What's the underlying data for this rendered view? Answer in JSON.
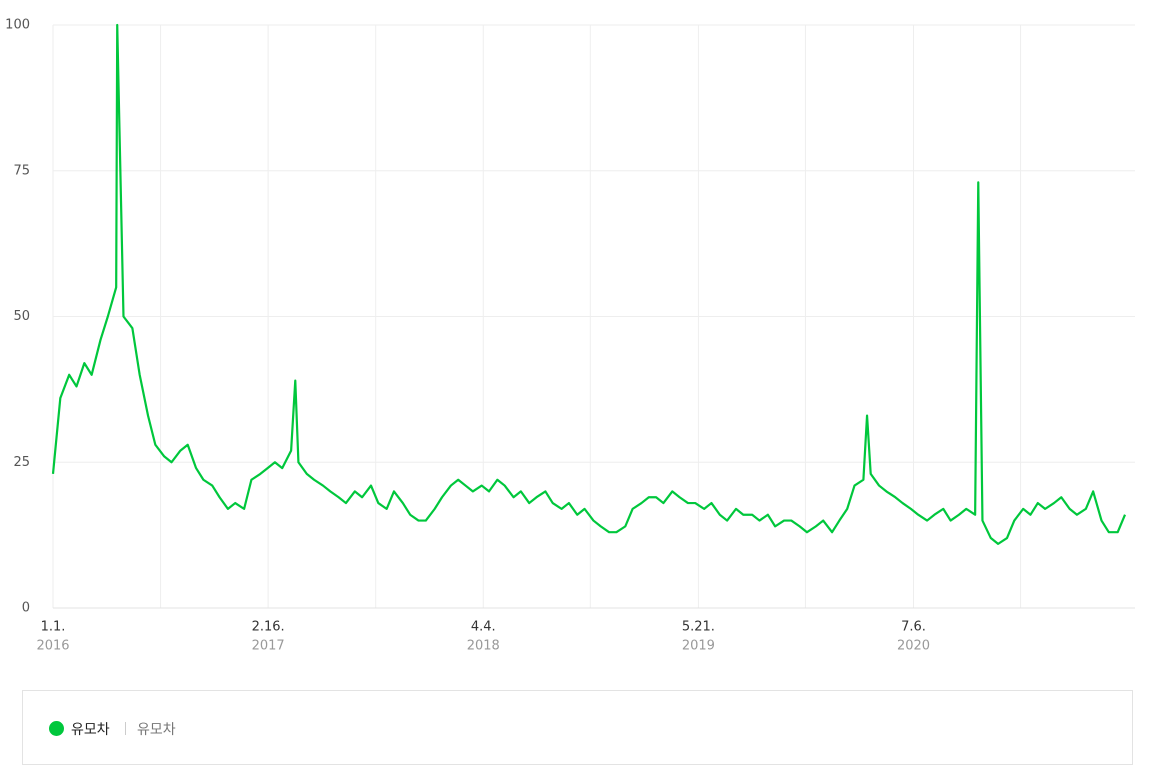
{
  "chart_data": {
    "type": "line",
    "x": [
      "2016-01-01",
      "2016-01-15",
      "2016-02-01",
      "2016-02-15",
      "2016-03-01",
      "2016-03-15",
      "2016-04-01",
      "2016-04-15",
      "2016-05-01",
      "2016-05-03",
      "2016-05-15",
      "2016-06-01",
      "2016-06-15",
      "2016-07-01",
      "2016-07-15",
      "2016-08-01",
      "2016-08-15",
      "2016-09-01",
      "2016-09-15",
      "2016-10-01",
      "2016-10-15",
      "2016-11-01",
      "2016-11-15",
      "2016-12-01",
      "2016-12-15",
      "2017-01-01",
      "2017-01-15",
      "2017-02-01",
      "2017-02-15",
      "2017-03-01",
      "2017-03-15",
      "2017-04-01",
      "2017-04-09",
      "2017-04-15",
      "2017-05-01",
      "2017-05-15",
      "2017-06-01",
      "2017-06-15",
      "2017-07-01",
      "2017-07-15",
      "2017-08-01",
      "2017-08-15",
      "2017-09-01",
      "2017-09-15",
      "2017-10-01",
      "2017-10-15",
      "2017-11-01",
      "2017-11-15",
      "2017-12-01",
      "2017-12-15",
      "2018-01-01",
      "2018-01-15",
      "2018-02-01",
      "2018-02-15",
      "2018-03-01",
      "2018-03-15",
      "2018-04-01",
      "2018-04-15",
      "2018-05-01",
      "2018-05-15",
      "2018-06-01",
      "2018-06-15",
      "2018-07-01",
      "2018-07-15",
      "2018-08-01",
      "2018-08-15",
      "2018-09-01",
      "2018-09-15",
      "2018-10-01",
      "2018-10-15",
      "2018-11-01",
      "2018-11-15",
      "2018-12-01",
      "2018-12-15",
      "2019-01-01",
      "2019-01-15",
      "2019-02-01",
      "2019-02-15",
      "2019-03-01",
      "2019-03-15",
      "2019-04-01",
      "2019-04-15",
      "2019-05-01",
      "2019-05-15",
      "2019-06-01",
      "2019-06-15",
      "2019-07-01",
      "2019-07-15",
      "2019-08-01",
      "2019-08-15",
      "2019-09-01",
      "2019-09-15",
      "2019-10-01",
      "2019-10-15",
      "2019-11-01",
      "2019-11-15",
      "2019-12-01",
      "2019-12-15",
      "2020-01-01",
      "2020-01-15",
      "2020-02-01",
      "2020-02-15",
      "2020-03-01",
      "2020-03-15",
      "2020-04-01",
      "2020-04-08",
      "2020-04-15",
      "2020-05-01",
      "2020-05-15",
      "2020-06-01",
      "2020-06-15",
      "2020-07-01",
      "2020-07-15",
      "2020-08-01",
      "2020-08-15",
      "2020-09-01",
      "2020-09-15",
      "2020-10-01",
      "2020-10-15",
      "2020-11-01",
      "2020-11-07",
      "2020-11-15",
      "2020-12-01",
      "2020-12-15",
      "2021-01-01",
      "2021-01-15",
      "2021-02-01",
      "2021-02-15",
      "2021-03-01",
      "2021-03-15",
      "2021-04-01",
      "2021-04-15",
      "2021-05-01",
      "2021-05-15",
      "2021-06-01",
      "2021-06-15",
      "2021-07-01",
      "2021-07-15",
      "2021-08-01",
      "2021-08-15"
    ],
    "series": [
      {
        "name": "유모차",
        "subtitle": "유모차",
        "color": "#00c73c",
        "values": [
          23,
          36,
          40,
          38,
          42,
          40,
          46,
          50,
          55,
          100,
          50,
          48,
          40,
          33,
          28,
          26,
          25,
          27,
          28,
          24,
          22,
          21,
          19,
          17,
          18,
          17,
          22,
          23,
          24,
          25,
          24,
          27,
          39,
          25,
          23,
          22,
          21,
          20,
          19,
          18,
          20,
          19,
          21,
          18,
          17,
          20,
          18,
          16,
          15,
          15,
          17,
          19,
          21,
          22,
          21,
          20,
          21,
          20,
          22,
          21,
          19,
          20,
          18,
          19,
          20,
          18,
          17,
          18,
          16,
          17,
          15,
          14,
          13,
          13,
          14,
          17,
          18,
          19,
          19,
          18,
          20,
          19,
          18,
          18,
          17,
          18,
          16,
          15,
          17,
          16,
          16,
          15,
          16,
          14,
          15,
          15,
          14,
          13,
          14,
          15,
          13,
          15,
          17,
          21,
          22,
          33,
          23,
          21,
          20,
          19,
          18,
          17,
          16,
          15,
          16,
          17,
          15,
          16,
          17,
          16,
          73,
          15,
          12,
          11,
          12,
          15,
          17,
          16,
          18,
          17,
          18,
          19,
          17,
          16,
          17,
          20,
          15,
          13,
          13,
          16
        ]
      }
    ],
    "xlim": [
      "2016-01-01",
      "2021-08-15"
    ],
    "xticks": [
      {
        "value": "2016-01-01",
        "label": "1.1.",
        "year": "2016"
      },
      {
        "value": "2017-02-16",
        "label": "2.16.",
        "year": "2017"
      },
      {
        "value": "2018-04-04",
        "label": "4.4.",
        "year": "2018"
      },
      {
        "value": "2019-05-21",
        "label": "5.21.",
        "year": "2019"
      },
      {
        "value": "2020-07-06",
        "label": "7.6.",
        "year": "2020"
      }
    ],
    "minor_xticks": [
      "2016-07-25",
      "2017-09-10",
      "2018-10-26",
      "2019-12-12",
      "2021-01-27"
    ],
    "ylim": [
      0,
      100
    ],
    "yticks": [
      0,
      25,
      50,
      75,
      100
    ],
    "grid": true
  }
}
